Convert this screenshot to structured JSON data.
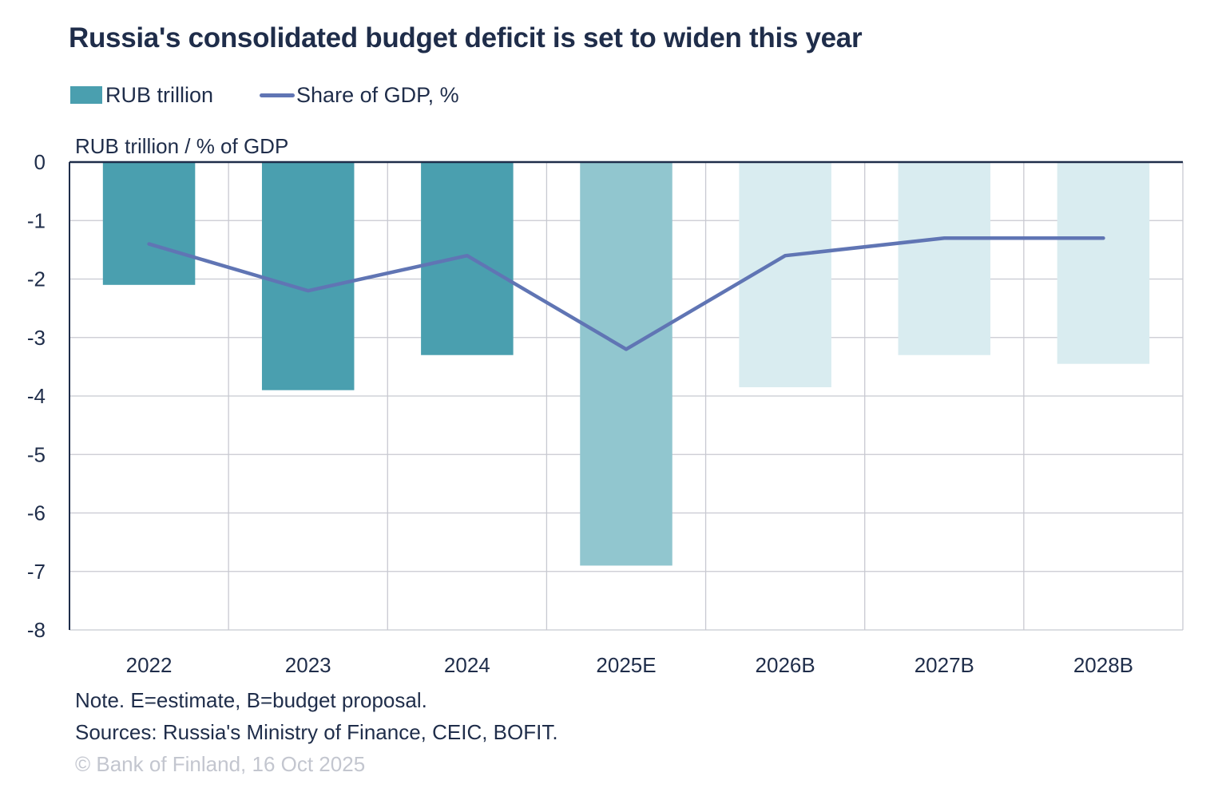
{
  "chart_data": {
    "type": "bar",
    "title": "Russia's consolidated budget deficit is set to widen this year",
    "xlabel": "",
    "ylabel": "RUB trillion / % of GDP",
    "ylim": [
      -8,
      0
    ],
    "yticks": [
      0,
      -1,
      -2,
      -3,
      -4,
      -5,
      -6,
      -7,
      -8
    ],
    "grid": true,
    "legend_position": "top-left",
    "categories": [
      "2022",
      "2023",
      "2024",
      "2025E",
      "2026B",
      "2027B",
      "2028B"
    ],
    "series": [
      {
        "name": "RUB trillion",
        "type": "bar",
        "color": "#4a9faf",
        "values": [
          -2.1,
          -3.9,
          -3.3,
          -6.9,
          -3.85,
          -3.3,
          -3.45
        ],
        "bar_colors": [
          "#4a9faf",
          "#4a9faf",
          "#4a9faf",
          "#91c6cf",
          "#d9ecf0",
          "#d9ecf0",
          "#d9ecf0"
        ]
      },
      {
        "name": "Share of GDP, %",
        "type": "line",
        "color": "#6075b4",
        "values": [
          -1.4,
          -2.2,
          -1.6,
          -3.2,
          -1.6,
          -1.3,
          -1.3
        ]
      }
    ]
  },
  "footer": {
    "note": "Note. E=estimate, B=budget proposal.",
    "sources": "Sources: Russia's Ministry of Finance, CEIC, BOFIT.",
    "copyright": "© Bank of Finland, 16 Oct 2025"
  }
}
